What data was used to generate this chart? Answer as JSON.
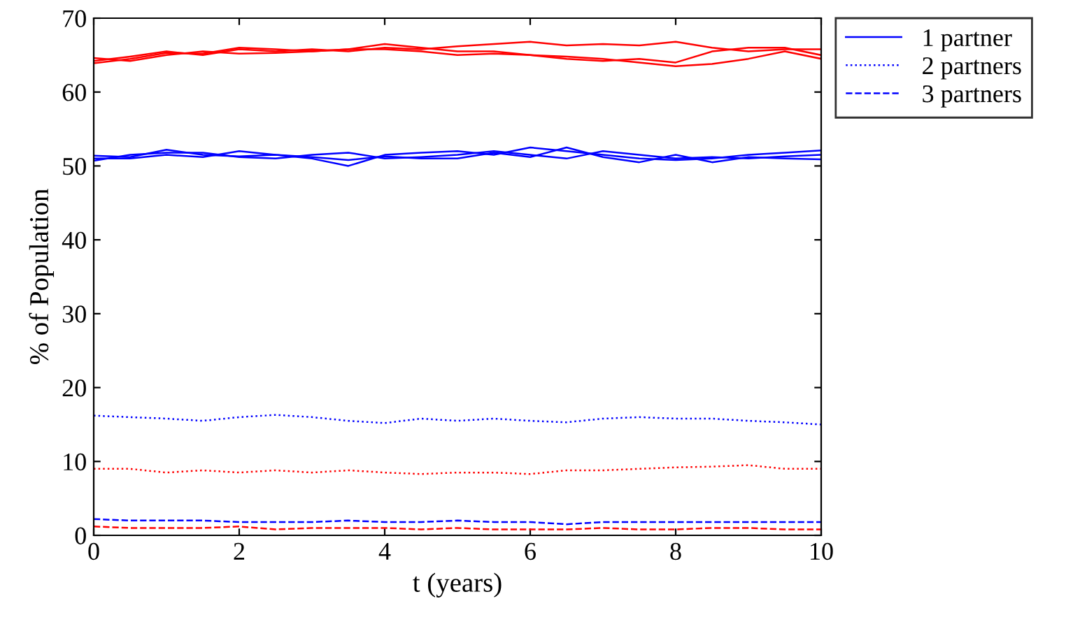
{
  "chart_data": {
    "type": "line",
    "xlabel": "t (years)",
    "ylabel": "% of Population",
    "x": [
      0,
      0.5,
      1,
      1.5,
      2,
      2.5,
      3,
      3.5,
      4,
      4.5,
      5,
      5.5,
      6,
      6.5,
      7,
      7.5,
      8,
      8.5,
      9,
      9.5,
      10
    ],
    "xlim": [
      0,
      10
    ],
    "xticks": [
      0,
      2,
      4,
      6,
      8,
      10
    ],
    "ylim": [
      0,
      70
    ],
    "yticks": [
      0,
      10,
      20,
      30,
      40,
      50,
      60,
      70
    ],
    "grid": false,
    "legend": "top right",
    "marker": "none",
    "series": [
      {
        "name": "1 partner",
        "color": "#0000ff",
        "line_style": "solid",
        "values": [
          51.4,
          51.2,
          52.2,
          51.5,
          51.3,
          51.5,
          51.0,
          50.0,
          51.5,
          51.8,
          52.0,
          51.5,
          52.5,
          52.0,
          51.5,
          51.0,
          50.8,
          51.0,
          51.5,
          51.8,
          52.1
        ]
      },
      {
        "color": "#0000ff",
        "line_style": "solid",
        "values": [
          50.7,
          51.5,
          51.8,
          51.8,
          51.2,
          51.0,
          51.5,
          51.8,
          51.0,
          51.2,
          51.5,
          52.0,
          51.5,
          51.0,
          52.0,
          51.5,
          51.0,
          51.2,
          51.0,
          51.3,
          51.5
        ]
      },
      {
        "color": "#0000ff",
        "line_style": "solid",
        "values": [
          51.0,
          51.0,
          51.5,
          51.2,
          52.0,
          51.5,
          51.2,
          50.8,
          51.3,
          51.0,
          51.0,
          51.8,
          51.2,
          52.5,
          51.2,
          50.5,
          51.5,
          50.5,
          51.2,
          51.0,
          50.9
        ]
      },
      {
        "name": "2 partners",
        "color": "#0000ff",
        "line_style": "dotted",
        "values": [
          16.2,
          16.0,
          15.8,
          15.5,
          16.0,
          16.3,
          16.0,
          15.5,
          15.2,
          15.8,
          15.5,
          15.8,
          15.5,
          15.3,
          15.8,
          16.0,
          15.8,
          15.8,
          15.5,
          15.3,
          15.0
        ]
      },
      {
        "name": "3 partners",
        "color": "#0000ff",
        "line_style": "dashed",
        "values": [
          2.2,
          2.0,
          2.0,
          2.0,
          1.8,
          1.8,
          1.8,
          2.0,
          1.8,
          1.8,
          2.0,
          1.8,
          1.8,
          1.5,
          1.8,
          1.8,
          1.8,
          1.8,
          1.8,
          1.8,
          1.8
        ]
      },
      {
        "color": "#ff0000",
        "line_style": "solid",
        "values": [
          64.2,
          64.8,
          65.5,
          65.0,
          65.8,
          65.5,
          65.8,
          65.5,
          66.0,
          65.8,
          66.2,
          66.5,
          66.8,
          66.3,
          66.5,
          66.3,
          66.8,
          66.0,
          65.5,
          65.8,
          65.8
        ]
      },
      {
        "color": "#ff0000",
        "line_style": "solid",
        "values": [
          63.9,
          64.5,
          65.3,
          65.2,
          66.0,
          65.8,
          65.5,
          65.8,
          66.5,
          66.0,
          65.5,
          65.5,
          65.0,
          64.5,
          64.2,
          64.5,
          64.0,
          65.5,
          66.0,
          66.0,
          65.0
        ]
      },
      {
        "color": "#ff0000",
        "line_style": "solid",
        "values": [
          64.6,
          64.2,
          65.0,
          65.5,
          65.2,
          65.3,
          65.5,
          65.8,
          65.8,
          65.5,
          65.0,
          65.2,
          65.0,
          64.8,
          64.5,
          64.0,
          63.5,
          63.8,
          64.5,
          65.5,
          64.5
        ]
      },
      {
        "color": "#ff0000",
        "line_style": "dotted",
        "values": [
          9.0,
          9.0,
          8.5,
          8.8,
          8.5,
          8.8,
          8.5,
          8.8,
          8.5,
          8.3,
          8.5,
          8.5,
          8.3,
          8.8,
          8.8,
          9.0,
          9.2,
          9.3,
          9.5,
          9.0,
          9.0
        ]
      },
      {
        "color": "#ff0000",
        "line_style": "dashed",
        "values": [
          1.2,
          1.0,
          1.0,
          1.0,
          1.2,
          0.8,
          1.0,
          1.0,
          1.0,
          0.8,
          1.0,
          0.8,
          0.8,
          0.8,
          1.0,
          0.8,
          0.8,
          1.0,
          1.0,
          0.8,
          0.8
        ]
      }
    ]
  }
}
